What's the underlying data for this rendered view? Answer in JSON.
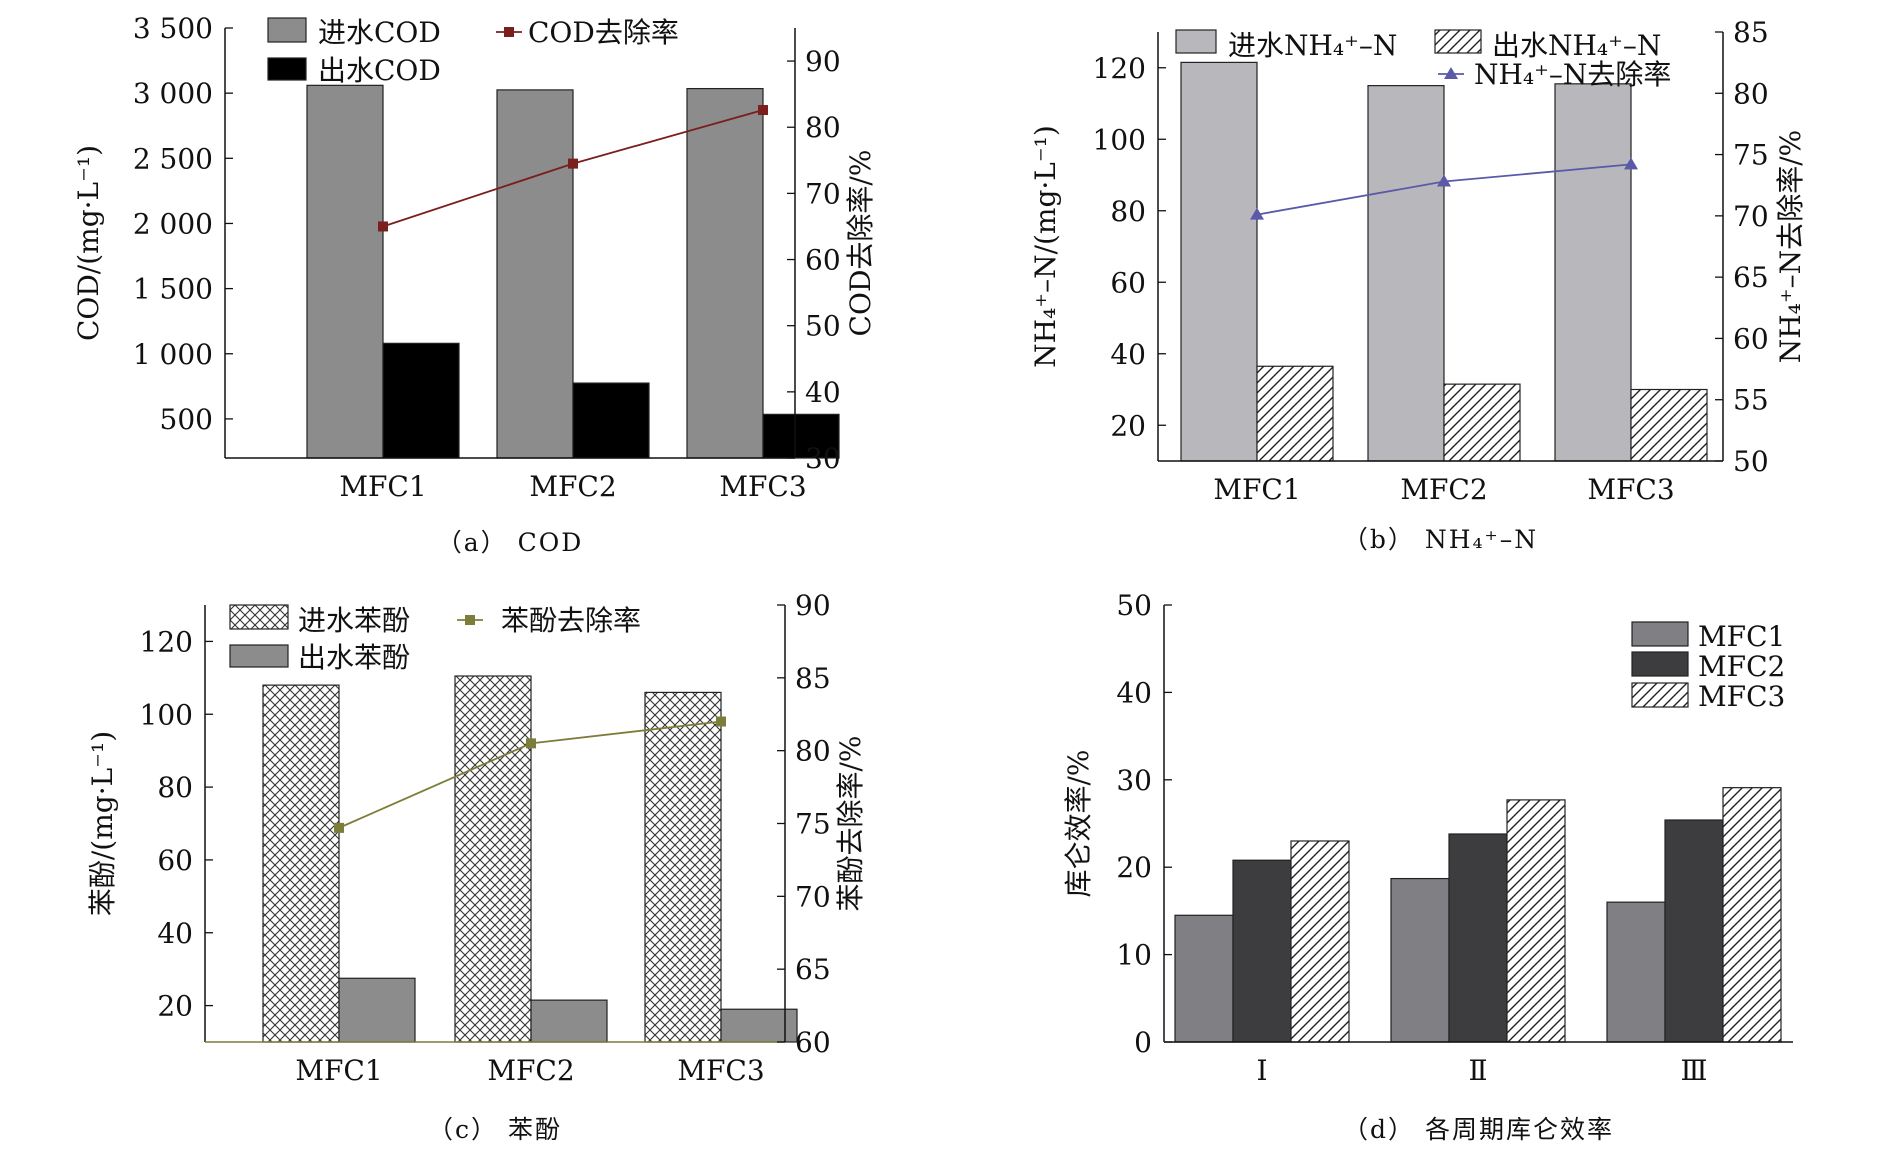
{
  "chart_data": [
    {
      "id": "a",
      "type": "bar",
      "caption": "（a） COD",
      "categories": [
        "MFC1",
        "MFC2",
        "MFC3"
      ],
      "ylabel": "COD/(mg·L⁻¹)",
      "ylim": [
        200,
        3500
      ],
      "yticks": [
        500,
        1000,
        1500,
        2000,
        2500,
        3000,
        3500
      ],
      "yticklabels": [
        "500",
        "1 000",
        "1 500",
        "2 000",
        "2 500",
        "3 000",
        "3 500"
      ],
      "y2label": "COD去除率/%",
      "y2lim": [
        30,
        95
      ],
      "y2ticks": [
        30,
        40,
        50,
        60,
        70,
        80,
        90
      ],
      "series": [
        {
          "name": "进水COD",
          "kind": "bar",
          "axis": "left",
          "fill": "#8c8c8c",
          "pattern": "none",
          "values": [
            3060,
            3025,
            3035
          ]
        },
        {
          "name": "出水COD",
          "kind": "bar",
          "axis": "left",
          "fill": "#000000",
          "pattern": "none",
          "values": [
            1080,
            775,
            535
          ]
        },
        {
          "name": "COD去除率",
          "kind": "line",
          "axis": "right",
          "color": "#7a1e1e",
          "marker": "square",
          "values": [
            65,
            74.5,
            82.6
          ]
        }
      ],
      "legend": {
        "placement": "top"
      }
    },
    {
      "id": "b",
      "type": "bar",
      "caption": "（b） NH₄⁺–N",
      "categories": [
        "MFC1",
        "MFC2",
        "MFC3"
      ],
      "ylabel": "NH₄⁺–N/(mg·L⁻¹)",
      "ylim": [
        10,
        130
      ],
      "yticks": [
        20,
        40,
        60,
        80,
        100,
        120
      ],
      "yticklabels": [
        "20",
        "40",
        "60",
        "80",
        "100",
        "120"
      ],
      "y2label": "NH₄⁺–N去除率/%",
      "y2lim": [
        50,
        85
      ],
      "y2ticks": [
        50,
        55,
        60,
        65,
        70,
        75,
        80,
        85
      ],
      "series": [
        {
          "name": "进水NH₄⁺–N",
          "kind": "bar",
          "axis": "left",
          "fill": "#b8b8bc",
          "pattern": "none",
          "values": [
            121.5,
            115,
            115.5
          ]
        },
        {
          "name": "出水NH₄⁺–N",
          "kind": "bar",
          "axis": "left",
          "fill": "#ffffff",
          "pattern": "diag",
          "values": [
            36.5,
            31.5,
            30
          ]
        },
        {
          "name": "NH₄⁺–N去除率",
          "kind": "line",
          "axis": "right",
          "color": "#5a5aa8",
          "marker": "triangle",
          "values": [
            70.1,
            72.8,
            74.2
          ]
        }
      ],
      "legend": {
        "placement": "top"
      }
    },
    {
      "id": "c",
      "type": "bar",
      "caption": "（c） 苯酚",
      "categories": [
        "MFC1",
        "MFC2",
        "MFC3"
      ],
      "ylabel": "苯酚/(mg·L⁻¹)",
      "ylim": [
        10,
        130
      ],
      "yticks": [
        20,
        40,
        60,
        80,
        100,
        120
      ],
      "yticklabels": [
        "20",
        "40",
        "60",
        "80",
        "100",
        "120"
      ],
      "y2label": "苯酚去除率/%",
      "y2lim": [
        60,
        90
      ],
      "y2ticks": [
        60,
        65,
        70,
        75,
        80,
        85,
        90
      ],
      "series": [
        {
          "name": "进水苯酚",
          "kind": "bar",
          "axis": "left",
          "fill": "#ffffff",
          "pattern": "cross",
          "values": [
            108,
            110.5,
            106
          ]
        },
        {
          "name": "出水苯酚",
          "kind": "bar",
          "axis": "left",
          "fill": "#8c8c8c",
          "pattern": "none",
          "values": [
            27.5,
            21.5,
            19
          ]
        },
        {
          "name": "苯酚去除率",
          "kind": "line",
          "axis": "right",
          "color": "#7d7d3a",
          "marker": "square",
          "values": [
            74.7,
            80.5,
            82
          ]
        }
      ],
      "legend": {
        "placement": "top"
      }
    },
    {
      "id": "d",
      "type": "bar",
      "caption": "（d） 各周期库仑效率",
      "categories": [
        "Ⅰ",
        "Ⅱ",
        "Ⅲ"
      ],
      "ylabel": "库仑效率/%",
      "ylim": [
        0,
        50
      ],
      "yticks": [
        0,
        10,
        20,
        30,
        40,
        50
      ],
      "yticklabels": [
        "0",
        "10",
        "20",
        "30",
        "40",
        "50"
      ],
      "series": [
        {
          "name": "MFC1",
          "kind": "bar",
          "axis": "left",
          "fill": "#7f7f84",
          "pattern": "none",
          "values": [
            14.5,
            18.7,
            16
          ]
        },
        {
          "name": "MFC2",
          "kind": "bar",
          "axis": "left",
          "fill": "#3d3d40",
          "pattern": "none",
          "values": [
            20.8,
            23.8,
            25.4
          ]
        },
        {
          "name": "MFC3",
          "kind": "bar",
          "axis": "left",
          "fill": "#ffffff",
          "pattern": "diag",
          "values": [
            23,
            27.7,
            29.1
          ]
        }
      ],
      "legend": {
        "placement": "top-right"
      }
    }
  ]
}
